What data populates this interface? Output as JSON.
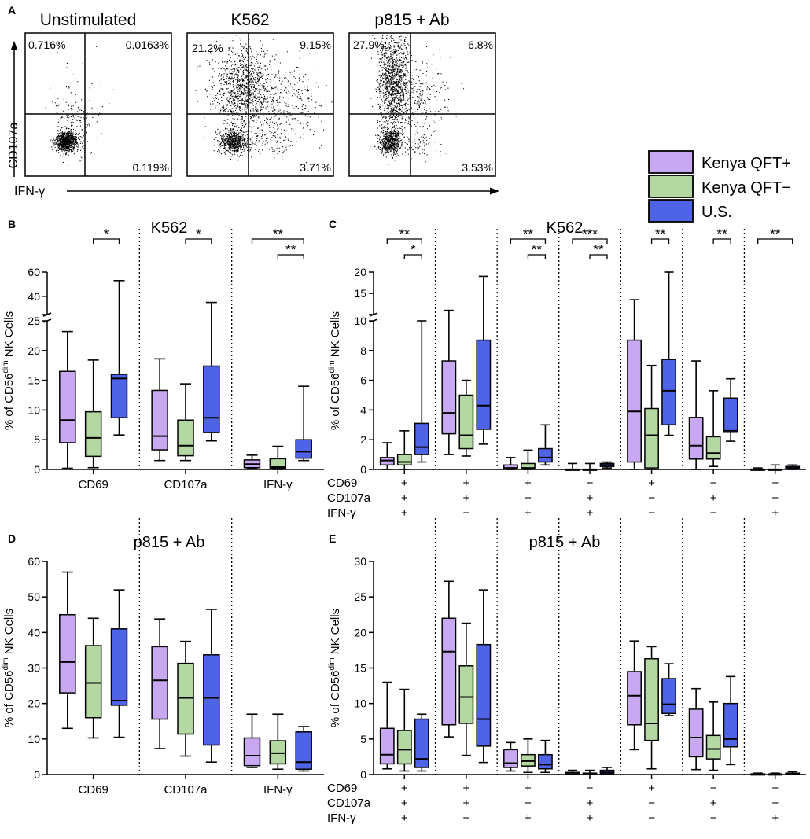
{
  "colors": {
    "kenya_pos": "#c9a8f2",
    "kenya_neg": "#b4d8a2",
    "us": "#4f63e6"
  },
  "legend": {
    "items": [
      "Kenya QFT+",
      "Kenya QFT−",
      "U.S."
    ]
  },
  "panel_a": {
    "letter": "A",
    "y_label": "CD107a",
    "x_label": "IFN-γ",
    "plots": [
      {
        "title": "Unstimulated",
        "q_ul": "0.716%",
        "q_ur": "0.0163%",
        "q_lr": "0.119%"
      },
      {
        "title": "K562",
        "q_ul": "21.2%",
        "q_ur": "9.15%",
        "q_lr": "3.71%"
      },
      {
        "title": "p815 + Ab",
        "q_ul": "27.9%",
        "q_ur": "6.8%",
        "q_lr": "3.53%"
      }
    ]
  },
  "panel_b": {
    "letter": "B",
    "title": "K562"
  },
  "panel_c": {
    "letter": "C",
    "title": "K562"
  },
  "panel_d": {
    "letter": "D",
    "title": "p815 + Ab"
  },
  "panel_e": {
    "letter": "E",
    "title": "p815 + Ab"
  },
  "combo_labels": {
    "rows": [
      "CD69",
      "CD107a",
      "IFN-γ"
    ],
    "signs": [
      [
        "+",
        "+",
        "+"
      ],
      [
        "+",
        "+",
        "−"
      ],
      [
        "+",
        "−",
        "+"
      ],
      [
        "−",
        "+",
        "+"
      ],
      [
        "+",
        "−",
        "−"
      ],
      [
        "−",
        "+",
        "−"
      ],
      [
        "−",
        "−",
        "+"
      ]
    ]
  },
  "chart_data": [
    {
      "id": "B",
      "type": "box",
      "title": "K562",
      "ylabel": "% of CD56dim NK Cells",
      "categories": [
        "CD69",
        "CD107a",
        "IFN-γ"
      ],
      "ylim": [
        0,
        60
      ],
      "y_break": {
        "lower": [
          0,
          25
        ],
        "upper": [
          25,
          60
        ]
      },
      "yticks": [
        0,
        5,
        10,
        15,
        20,
        25,
        40,
        60
      ],
      "series_names": [
        "Kenya QFT+",
        "Kenya QFT−",
        "U.S."
      ],
      "boxes": [
        [
          {
            "min": 0.2,
            "q1": 4.5,
            "median": 8.3,
            "q3": 16.5,
            "max": 23.2
          },
          {
            "min": 0.3,
            "q1": 2.2,
            "median": 5.3,
            "q3": 9.7,
            "max": 18.4
          },
          {
            "min": 5.8,
            "q1": 8.7,
            "median": 15.3,
            "q3": 16.0,
            "max": 53.0
          }
        ],
        [
          {
            "min": 1.5,
            "q1": 3.3,
            "median": 5.6,
            "q3": 13.3,
            "max": 18.6
          },
          {
            "min": 1.5,
            "q1": 2.3,
            "median": 4.0,
            "q3": 8.3,
            "max": 14.4
          },
          {
            "min": 4.8,
            "q1": 6.2,
            "median": 8.7,
            "q3": 17.4,
            "max": 35.0
          }
        ],
        [
          {
            "min": 0.1,
            "q1": 0.3,
            "median": 0.9,
            "q3": 1.6,
            "max": 2.4
          },
          {
            "min": 0.0,
            "q1": 0.2,
            "median": 0.4,
            "q3": 1.8,
            "max": 3.9
          },
          {
            "min": 1.5,
            "q1": 1.9,
            "median": 3.0,
            "q3": 5.0,
            "max": 14.0
          }
        ]
      ],
      "significance": [
        {
          "category": 0,
          "from": 1,
          "to": 2,
          "label": "*"
        },
        {
          "category": 1,
          "from": 1,
          "to": 2,
          "label": "*"
        },
        {
          "category": 2,
          "from": 0,
          "to": 2,
          "label": "**"
        },
        {
          "category": 2,
          "from": 1,
          "to": 2,
          "label": "**"
        }
      ]
    },
    {
      "id": "C",
      "type": "box",
      "title": "K562",
      "ylabel": "% of CD56dim NK Cells",
      "categories": [
        "CD69+ CD107a+ IFN-γ+",
        "CD69+ CD107a+ IFN-γ−",
        "CD69+ CD107a− IFN-γ+",
        "CD69− CD107a+ IFN-γ+",
        "CD69+ CD107a− IFN-γ−",
        "CD69− CD107a+ IFN-γ−",
        "CD69− CD107a− IFN-γ+"
      ],
      "ylim": [
        0,
        20
      ],
      "y_break": {
        "lower": [
          0,
          10
        ],
        "upper": [
          10,
          20
        ]
      },
      "yticks": [
        0,
        2,
        4,
        6,
        8,
        10,
        15,
        20
      ],
      "series_names": [
        "Kenya QFT+",
        "Kenya QFT−",
        "U.S."
      ],
      "boxes": [
        [
          {
            "min": 0.0,
            "q1": 0.3,
            "median": 0.6,
            "q3": 0.8,
            "max": 1.8
          },
          {
            "min": 0.0,
            "q1": 0.3,
            "median": 0.5,
            "q3": 1.0,
            "max": 2.6
          },
          {
            "min": 0.5,
            "q1": 1.0,
            "median": 1.5,
            "q3": 3.1,
            "max": 10.0
          }
        ],
        [
          {
            "min": 1.0,
            "q1": 2.4,
            "median": 3.8,
            "q3": 7.3,
            "max": 11.0
          },
          {
            "min": 0.9,
            "q1": 1.4,
            "median": 2.3,
            "q3": 5.0,
            "max": 6.0
          },
          {
            "min": 1.7,
            "q1": 2.7,
            "median": 4.3,
            "q3": 8.7,
            "max": 19.0
          }
        ],
        [
          {
            "min": 0.0,
            "q1": 0.05,
            "median": 0.1,
            "q3": 0.3,
            "max": 0.8
          },
          {
            "min": 0.0,
            "q1": 0.05,
            "median": 0.1,
            "q3": 0.4,
            "max": 1.3
          },
          {
            "min": 0.3,
            "q1": 0.5,
            "median": 0.8,
            "q3": 1.4,
            "max": 3.0
          }
        ],
        [
          {
            "min": 0.0,
            "q1": 0.0,
            "median": 0.0,
            "q3": 0.02,
            "max": 0.4
          },
          {
            "min": 0.0,
            "q1": 0.0,
            "median": 0.0,
            "q3": 0.02,
            "max": 0.4
          },
          {
            "min": 0.1,
            "q1": 0.2,
            "median": 0.3,
            "q3": 0.4,
            "max": 0.5
          }
        ],
        [
          {
            "min": 0.0,
            "q1": 0.5,
            "median": 3.9,
            "q3": 8.7,
            "max": 13.5
          },
          {
            "min": 0.0,
            "q1": 0.1,
            "median": 2.3,
            "q3": 4.1,
            "max": 7.0
          },
          {
            "min": 2.3,
            "q1": 3.0,
            "median": 5.3,
            "q3": 7.4,
            "max": 20.0
          }
        ],
        [
          {
            "min": 0.0,
            "q1": 0.7,
            "median": 1.6,
            "q3": 3.5,
            "max": 7.3
          },
          {
            "min": 0.2,
            "q1": 0.7,
            "median": 1.1,
            "q3": 2.2,
            "max": 5.3
          },
          {
            "min": 1.9,
            "q1": 2.5,
            "median": 2.6,
            "q3": 4.8,
            "max": 6.1
          }
        ],
        [
          {
            "min": 0.0,
            "q1": 0.0,
            "median": 0.0,
            "q3": 0.02,
            "max": 0.1
          },
          {
            "min": 0.0,
            "q1": 0.0,
            "median": 0.0,
            "q3": 0.02,
            "max": 0.3
          },
          {
            "min": 0.0,
            "q1": 0.05,
            "median": 0.1,
            "q3": 0.2,
            "max": 0.3
          }
        ]
      ],
      "significance": [
        {
          "category": 0,
          "from": 0,
          "to": 2,
          "label": "**"
        },
        {
          "category": 0,
          "from": 1,
          "to": 2,
          "label": "*"
        },
        {
          "category": 2,
          "from": 0,
          "to": 2,
          "label": "**"
        },
        {
          "category": 2,
          "from": 1,
          "to": 2,
          "label": "**"
        },
        {
          "category": 3,
          "from": 0,
          "to": 2,
          "label": "***"
        },
        {
          "category": 3,
          "from": 1,
          "to": 2,
          "label": "**"
        },
        {
          "category": 4,
          "from": 1,
          "to": 2,
          "label": "**"
        },
        {
          "category": 5,
          "from": 1,
          "to": 2,
          "label": "**"
        },
        {
          "category": 6,
          "from": 0,
          "to": 2,
          "label": "**"
        }
      ]
    },
    {
      "id": "D",
      "type": "box",
      "title": "p815 + Ab",
      "ylabel": "% of CD56dim NK Cells",
      "categories": [
        "CD69",
        "CD107a",
        "IFN-γ"
      ],
      "ylim": [
        0,
        60
      ],
      "yticks": [
        0,
        10,
        20,
        30,
        40,
        50,
        60
      ],
      "series_names": [
        "Kenya QFT+",
        "Kenya QFT−",
        "U.S."
      ],
      "boxes": [
        [
          {
            "min": 13.0,
            "q1": 23.0,
            "median": 31.7,
            "q3": 45.0,
            "max": 57.0
          },
          {
            "min": 10.3,
            "q1": 16.0,
            "median": 25.8,
            "q3": 36.3,
            "max": 44.0
          },
          {
            "min": 10.5,
            "q1": 19.5,
            "median": 20.8,
            "q3": 41.0,
            "max": 52.0
          }
        ],
        [
          {
            "min": 7.3,
            "q1": 15.6,
            "median": 26.5,
            "q3": 36.0,
            "max": 43.8
          },
          {
            "min": 5.2,
            "q1": 11.4,
            "median": 21.6,
            "q3": 31.3,
            "max": 37.5
          },
          {
            "min": 3.5,
            "q1": 8.3,
            "median": 21.6,
            "q3": 33.7,
            "max": 46.5
          }
        ],
        [
          {
            "min": 2.0,
            "q1": 2.5,
            "median": 5.3,
            "q3": 10.3,
            "max": 17.0
          },
          {
            "min": 1.5,
            "q1": 3.0,
            "median": 6.0,
            "q3": 9.5,
            "max": 17.0
          },
          {
            "min": 1.0,
            "q1": 1.5,
            "median": 3.5,
            "q3": 12.0,
            "max": 13.5
          }
        ]
      ],
      "significance": []
    },
    {
      "id": "E",
      "type": "box",
      "title": "p815 + Ab",
      "ylabel": "% of CD56dim NK Cells",
      "categories": [
        "CD69+ CD107a+ IFN-γ+",
        "CD69+ CD107a+ IFN-γ−",
        "CD69+ CD107a− IFN-γ+",
        "CD69− CD107a+ IFN-γ+",
        "CD69+ CD107a− IFN-γ−",
        "CD69− CD107a+ IFN-γ−",
        "CD69− CD107a− IFN-γ+"
      ],
      "ylim": [
        0,
        30
      ],
      "yticks": [
        0,
        5,
        10,
        15,
        20,
        25,
        30
      ],
      "series_names": [
        "Kenya QFT+",
        "Kenya QFT−",
        "U.S."
      ],
      "boxes": [
        [
          {
            "min": 0.8,
            "q1": 1.5,
            "median": 2.8,
            "q3": 6.5,
            "max": 13.0
          },
          {
            "min": 0.5,
            "q1": 1.5,
            "median": 3.5,
            "q3": 6.2,
            "max": 12.0
          },
          {
            "min": 0.5,
            "q1": 1.0,
            "median": 2.2,
            "q3": 7.8,
            "max": 8.5
          }
        ],
        [
          {
            "min": 5.3,
            "q1": 7.0,
            "median": 17.3,
            "q3": 22.0,
            "max": 27.2
          },
          {
            "min": 2.7,
            "q1": 7.2,
            "median": 10.9,
            "q3": 15.3,
            "max": 21.3
          },
          {
            "min": 1.7,
            "q1": 4.0,
            "median": 7.8,
            "q3": 18.3,
            "max": 26.0
          }
        ],
        [
          {
            "min": 0.5,
            "q1": 1.0,
            "median": 1.6,
            "q3": 3.5,
            "max": 4.5
          },
          {
            "min": 0.3,
            "q1": 1.2,
            "median": 1.9,
            "q3": 2.8,
            "max": 5.0
          },
          {
            "min": 0.3,
            "q1": 0.8,
            "median": 1.4,
            "q3": 2.8,
            "max": 4.8
          }
        ],
        [
          {
            "min": 0.0,
            "q1": 0.0,
            "median": 0.1,
            "q3": 0.3,
            "max": 0.6
          },
          {
            "min": 0.0,
            "q1": 0.0,
            "median": 0.1,
            "q3": 0.2,
            "max": 0.6
          },
          {
            "min": 0.0,
            "q1": 0.1,
            "median": 0.3,
            "q3": 0.6,
            "max": 1.0
          }
        ],
        [
          {
            "min": 3.5,
            "q1": 7.0,
            "median": 11.1,
            "q3": 14.5,
            "max": 18.8
          },
          {
            "min": 0.8,
            "q1": 4.8,
            "median": 7.2,
            "q3": 16.3,
            "max": 18.0
          },
          {
            "min": 8.3,
            "q1": 8.6,
            "median": 9.9,
            "q3": 13.5,
            "max": 15.6
          }
        ],
        [
          {
            "min": 0.7,
            "q1": 2.5,
            "median": 5.2,
            "q3": 9.2,
            "max": 12.1
          },
          {
            "min": 0.6,
            "q1": 2.2,
            "median": 3.6,
            "q3": 5.5,
            "max": 10.2
          },
          {
            "min": 1.4,
            "q1": 3.9,
            "median": 5.0,
            "q3": 10.0,
            "max": 13.8
          }
        ],
        [
          {
            "min": 0.0,
            "q1": 0.0,
            "median": 0.0,
            "q3": 0.1,
            "max": 0.2
          },
          {
            "min": 0.0,
            "q1": 0.0,
            "median": 0.0,
            "q3": 0.1,
            "max": 0.2
          },
          {
            "min": 0.0,
            "q1": 0.0,
            "median": 0.1,
            "q3": 0.2,
            "max": 0.4
          }
        ]
      ],
      "significance": []
    }
  ]
}
